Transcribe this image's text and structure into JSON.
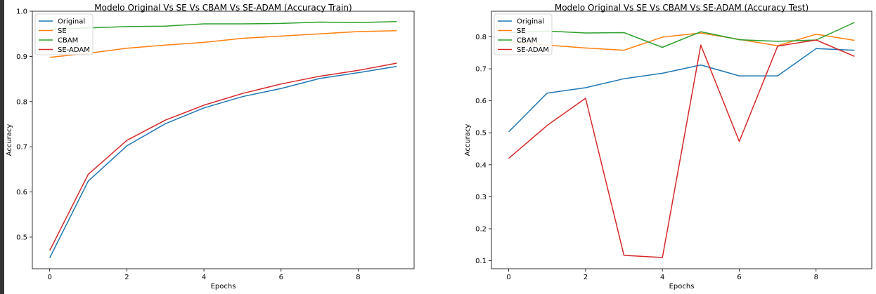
{
  "chart_data": [
    {
      "type": "line",
      "title": "Modelo Original Vs SE Vs CBAM Vs SE-ADAM (Accuracy Train)",
      "xlabel": "Epochs",
      "ylabel": "Accuracy",
      "xlim": [
        -0.45,
        9.45
      ],
      "ylim": [
        0.43,
        1.0
      ],
      "xticks": [
        0,
        2,
        4,
        6,
        8
      ],
      "yticks": [
        0.5,
        0.6,
        0.7,
        0.8,
        0.9,
        1.0
      ],
      "x": [
        0,
        1,
        2,
        3,
        4,
        5,
        6,
        7,
        8,
        9
      ],
      "legend_position": "top-left",
      "series": [
        {
          "name": "Original",
          "color": "#1f77b4",
          "values": [
            0.454,
            0.624,
            0.702,
            0.751,
            0.786,
            0.811,
            0.829,
            0.851,
            0.864,
            0.878
          ]
        },
        {
          "name": "SE",
          "color": "#ff7f0e",
          "values": [
            0.898,
            0.907,
            0.918,
            0.925,
            0.931,
            0.94,
            0.945,
            0.95,
            0.955,
            0.957
          ]
        },
        {
          "name": "CBAM",
          "color": "#2ca02c",
          "values": [
            0.96,
            0.963,
            0.966,
            0.967,
            0.972,
            0.972,
            0.973,
            0.976,
            0.975,
            0.977
          ]
        },
        {
          "name": "SE-ADAM",
          "color": "#d62728",
          "values": [
            0.47,
            0.639,
            0.714,
            0.759,
            0.792,
            0.818,
            0.839,
            0.856,
            0.869,
            0.885
          ]
        }
      ]
    },
    {
      "type": "line",
      "title": "Modelo Original Vs SE Vs CBAM Vs SE-ADAM (Accuracy Test)",
      "xlabel": "Epochs",
      "ylabel": "Accuracy",
      "xlim": [
        -0.45,
        9.45
      ],
      "ylim": [
        0.075,
        0.88
      ],
      "xticks": [
        0,
        2,
        4,
        6,
        8
      ],
      "yticks": [
        0.1,
        0.2,
        0.3,
        0.4,
        0.5,
        0.6,
        0.7,
        0.8
      ],
      "x": [
        0,
        1,
        2,
        3,
        4,
        5,
        6,
        7,
        8,
        9
      ],
      "legend_position": "top-left",
      "series": [
        {
          "name": "Original",
          "color": "#1f77b4",
          "values": [
            0.503,
            0.624,
            0.641,
            0.669,
            0.686,
            0.712,
            0.678,
            0.678,
            0.763,
            0.758
          ]
        },
        {
          "name": "SE",
          "color": "#ff7f0e",
          "values": [
            0.785,
            0.774,
            0.765,
            0.758,
            0.799,
            0.812,
            0.792,
            0.772,
            0.808,
            0.789
          ]
        },
        {
          "name": "CBAM",
          "color": "#2ca02c",
          "values": [
            0.813,
            0.818,
            0.812,
            0.813,
            0.767,
            0.816,
            0.791,
            0.786,
            0.79,
            0.845
          ]
        },
        {
          "name": "SE-ADAM",
          "color": "#d62728",
          "values": [
            0.42,
            0.523,
            0.608,
            0.117,
            0.11,
            0.774,
            0.473,
            0.771,
            0.79,
            0.739
          ]
        }
      ]
    }
  ]
}
